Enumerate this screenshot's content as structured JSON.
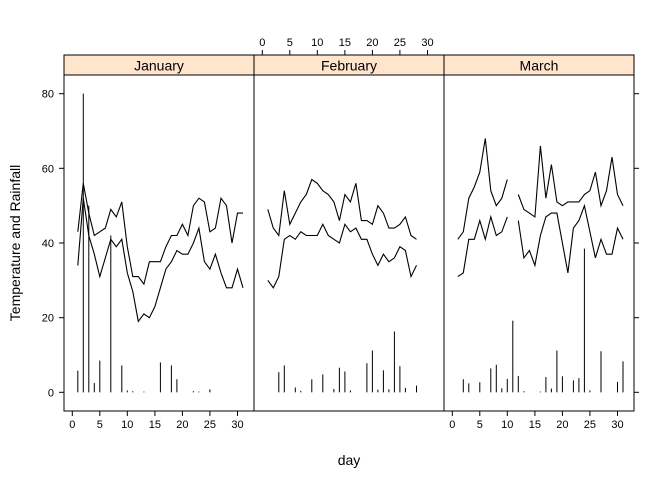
{
  "chart_data": {
    "type": "line",
    "xlabel": "day",
    "ylabel": "Temperature and Rainfall",
    "xlim": [
      -1.5,
      33
    ],
    "ylim": [
      -5,
      85
    ],
    "y_ticks": [
      0,
      20,
      40,
      60,
      80
    ],
    "x_ticks": [
      0,
      5,
      10,
      15,
      20,
      25,
      30
    ],
    "x_ticks_bottom_panels": [
      0,
      2
    ],
    "x_ticks_top_panels": [
      1
    ],
    "grid": false,
    "legend": "none",
    "panels": [
      {
        "label": "January",
        "series": [
          {
            "kind": "line",
            "x": [
              1,
              2,
              3,
              4,
              5,
              6,
              7,
              8,
              9,
              10,
              11,
              12,
              13,
              14,
              15,
              16,
              17,
              18,
              19,
              20,
              21,
              22,
              23,
              24,
              25,
              26,
              27,
              28,
              29,
              30,
              31
            ],
            "values": [
              43,
              56,
              48,
              42,
              43,
              44,
              49,
              47,
              51,
              39,
              31,
              31,
              29,
              35,
              35,
              35,
              39,
              42,
              42,
              45,
              42,
              50,
              52,
              51,
              43,
              44,
              52,
              50,
              40,
              48,
              48
            ]
          },
          {
            "kind": "line",
            "x": [
              1,
              2,
              3,
              4,
              5,
              6,
              7,
              8,
              9,
              10,
              11,
              12,
              13,
              14,
              15,
              16,
              17,
              18,
              19,
              20,
              21,
              22,
              23,
              24,
              25,
              26,
              27,
              28,
              29,
              30,
              31
            ],
            "values": [
              34,
              52,
              42,
              37,
              31,
              36,
              41,
              39,
              41,
              32,
              27,
              19,
              21,
              20,
              23,
              28,
              33,
              35,
              38,
              37,
              37,
              40,
              44,
              35,
              33,
              37,
              32,
              28,
              28,
              33,
              28
            ]
          },
          {
            "kind": "bars",
            "x": [
              1,
              2,
              3,
              4,
              5,
              6,
              7,
              8,
              9,
              10,
              11,
              12,
              13,
              14,
              15,
              16,
              17,
              18,
              19,
              20,
              21,
              22,
              23,
              24,
              25,
              26,
              27,
              28,
              29,
              30,
              31
            ],
            "values": [
              5.8,
              80,
              50,
              2.5,
              8.5,
              0,
              42,
              0,
              7.2,
              0.5,
              0.3,
              0,
              0.2,
              0,
              0,
              8,
              0,
              7.2,
              3.5,
              0,
              0,
              0.3,
              0.2,
              0,
              0.8,
              0,
              0,
              0,
              0,
              0,
              0
            ]
          }
        ]
      },
      {
        "label": "February",
        "series": [
          {
            "kind": "line",
            "x": [
              1,
              2,
              3,
              4,
              5,
              6,
              7,
              8,
              9,
              10,
              11,
              12,
              13,
              14,
              15,
              16,
              17,
              18,
              19,
              20,
              21,
              22,
              23,
              24,
              25,
              26,
              27,
              28
            ],
            "values": [
              49,
              44,
              42,
              54,
              45,
              48,
              51,
              53,
              57,
              56,
              54,
              53,
              51,
              46,
              53,
              51,
              56,
              46,
              46,
              45,
              50,
              48,
              44,
              44,
              45,
              47,
              42,
              41
            ]
          },
          {
            "kind": "line",
            "x": [
              1,
              2,
              3,
              4,
              5,
              6,
              7,
              8,
              9,
              10,
              11,
              12,
              13,
              14,
              15,
              16,
              17,
              18,
              19,
              20,
              21,
              22,
              23,
              24,
              25,
              26,
              27,
              28
            ],
            "values": [
              30,
              28,
              31,
              41,
              42,
              41,
              43,
              42,
              42,
              42,
              45,
              42,
              41,
              40,
              45,
              43,
              44,
              41,
              41,
              37,
              34,
              37,
              35,
              36,
              39,
              38,
              31,
              34
            ]
          },
          {
            "kind": "bars",
            "x": [
              1,
              2,
              3,
              4,
              5,
              6,
              7,
              8,
              9,
              10,
              11,
              12,
              13,
              14,
              15,
              16,
              17,
              18,
              19,
              20,
              21,
              22,
              23,
              24,
              25,
              26,
              27,
              28
            ],
            "values": [
              0,
              0,
              5.4,
              7.2,
              0,
              1.3,
              0.4,
              0,
              3.5,
              0,
              4.8,
              0,
              0.9,
              6.6,
              5.6,
              0.5,
              0,
              0,
              7.8,
              11.2,
              0.7,
              5.9,
              0.8,
              16.3,
              7,
              1.2,
              0,
              1.8
            ]
          }
        ]
      },
      {
        "label": "March",
        "series": [
          {
            "kind": "line",
            "x": [
              1,
              2,
              3,
              4,
              5,
              6,
              7,
              8,
              9,
              10,
              11
            ],
            "values": [
              41,
              43,
              52,
              55,
              59,
              68,
              54,
              50,
              52,
              57,
              null
            ]
          },
          {
            "kind": "line",
            "x": [
              12,
              13,
              14,
              15,
              16,
              17,
              18,
              19,
              20,
              21,
              22,
              23,
              24,
              25,
              26,
              27,
              28,
              29,
              30,
              31
            ],
            "values": [
              53,
              49,
              48,
              47,
              66,
              52,
              61,
              51,
              50,
              51,
              51,
              51,
              53,
              54,
              59,
              50,
              54,
              63,
              53,
              50
            ]
          },
          {
            "kind": "line",
            "x": [
              1,
              2,
              3,
              4,
              5,
              6,
              7,
              8,
              9,
              10,
              11
            ],
            "values": [
              31,
              32,
              41,
              41,
              46,
              41,
              47,
              42,
              43,
              47,
              null
            ]
          },
          {
            "kind": "line",
            "x": [
              12,
              13,
              14,
              15,
              16,
              17,
              18,
              19,
              20,
              21,
              22,
              23,
              24,
              25,
              26,
              27,
              28,
              29,
              30,
              31
            ],
            "values": [
              46,
              36,
              38,
              34,
              42,
              47,
              48,
              48,
              40,
              32,
              44,
              46,
              50,
              43,
              36,
              41,
              37,
              37,
              44,
              41
            ]
          },
          {
            "kind": "bars",
            "x": [
              1,
              2,
              3,
              4,
              5,
              6,
              7,
              8,
              9,
              10,
              11,
              12,
              13,
              14,
              15,
              16,
              17,
              18,
              19,
              20,
              21,
              22,
              23,
              24,
              25,
              26,
              27,
              28,
              29,
              30,
              31
            ],
            "values": [
              0,
              3.5,
              2.4,
              0,
              2.7,
              0,
              6.4,
              7.4,
              1.1,
              3.6,
              19.2,
              4.4,
              0.3,
              0,
              0,
              0.2,
              4.1,
              1,
              11.2,
              4.3,
              0,
              3.2,
              3.8,
              38.5,
              0.5,
              0,
              11,
              0,
              0,
              2.8,
              8.3
            ]
          }
        ]
      }
    ]
  }
}
